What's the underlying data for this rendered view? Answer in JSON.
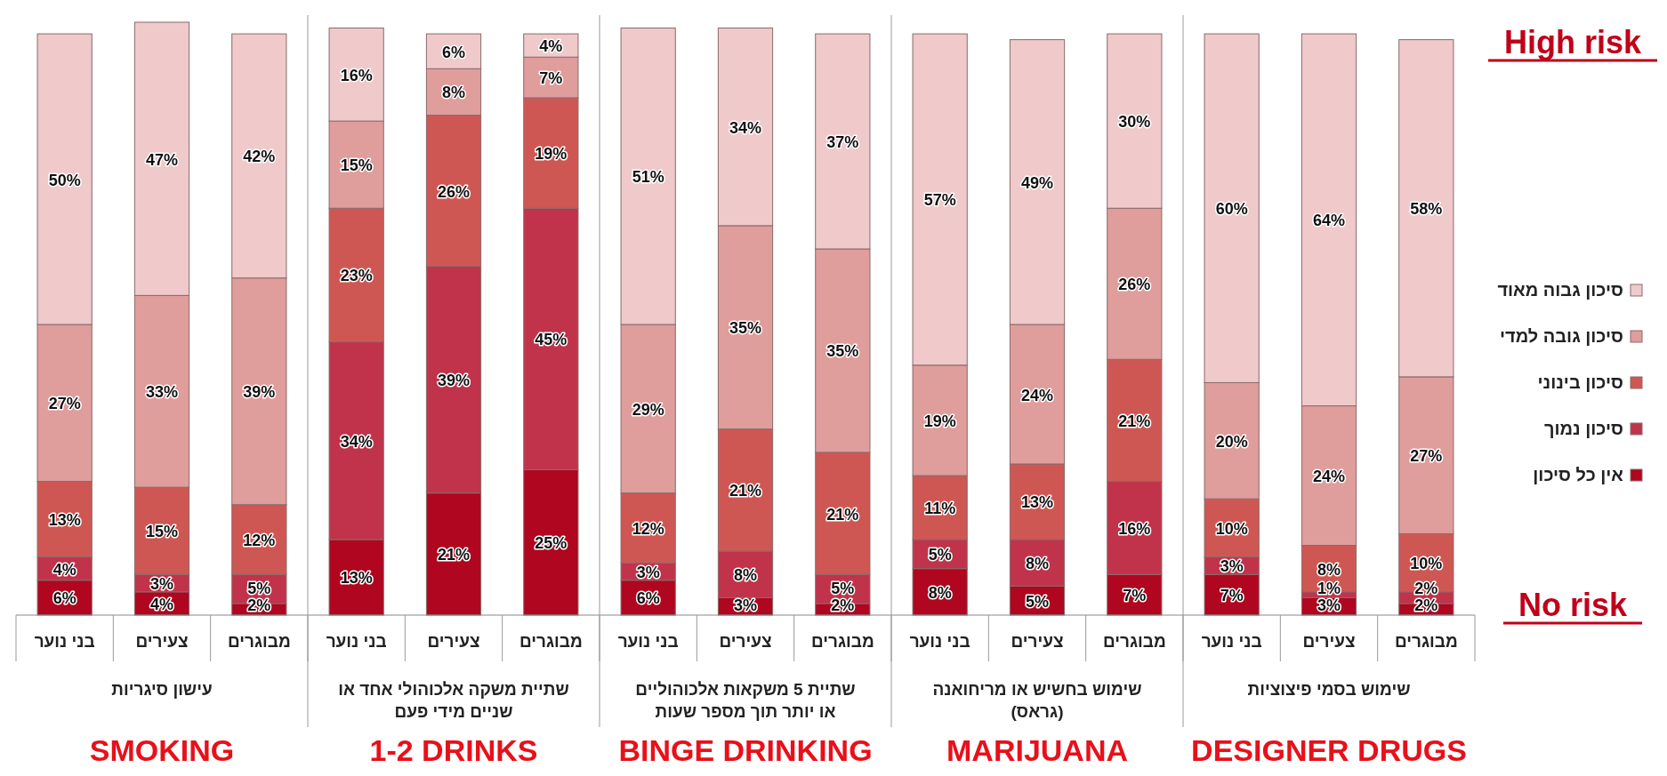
{
  "chart_data": {
    "type": "bar",
    "stacked": true,
    "legend": "right",
    "categories": [
      "בני נוער",
      "צעירים",
      "מבוגרים",
      "בני נוער",
      "צעירים",
      "מבוגרים",
      "בני נוער",
      "צעירים",
      "מבוגרים",
      "בני נוער",
      "צעירים",
      "מבוגרים",
      "בני נוער",
      "צעירים",
      "מבוגרים"
    ],
    "series": [
      {
        "name": "אין כל סיכון",
        "color": "#b0061f",
        "values": [
          6,
          4,
          2,
          13,
          21,
          25,
          6,
          3,
          2,
          8,
          5,
          7,
          7,
          3,
          2
        ],
        "value_labels": [
          "6%",
          "4%",
          "2%",
          "13%",
          "21%",
          "25%",
          "6%",
          "3%",
          "2%",
          "8%",
          "5%",
          "7%",
          "7%",
          "3%",
          "2%"
        ]
      },
      {
        "name": "סיכון נמוך",
        "color": "#c0334b",
        "values": [
          4,
          3,
          5,
          34,
          39,
          45,
          3,
          8,
          5,
          5,
          8,
          16,
          3,
          1,
          2
        ],
        "value_labels": [
          "4%",
          "3%",
          "5%",
          "34%",
          "39%",
          "45%",
          "3%",
          "8%",
          "5%",
          "5%",
          "8%",
          "16%",
          "3%",
          "1%",
          "2%"
        ]
      },
      {
        "name": "סיכון בינוני",
        "color": "#cf5753",
        "values": [
          13,
          15,
          12,
          23,
          26,
          19,
          12,
          21,
          21,
          11,
          13,
          21,
          10,
          8,
          10
        ],
        "value_labels": [
          "13%",
          "15%",
          "12%",
          "23%",
          "26%",
          "19%",
          "12%",
          "21%",
          "21%",
          "11%",
          "13%",
          "21%",
          "10%",
          "8%",
          "10%"
        ]
      },
      {
        "name": "סיכון גובה למדי",
        "color": "#df9d9b",
        "values": [
          27,
          33,
          39,
          15,
          8,
          7,
          29,
          35,
          35,
          19,
          24,
          26,
          20,
          24,
          27
        ],
        "value_labels": [
          "27%",
          "33%",
          "39%",
          "15%",
          "8%",
          "7%",
          "29%",
          "35%",
          "35%",
          "19%",
          "24%",
          "26%",
          "20%",
          "24%",
          "27%"
        ]
      },
      {
        "name": "סיכון גבוה מאוד",
        "color": "#f0c9ca",
        "values": [
          50,
          47,
          42,
          16,
          6,
          4,
          51,
          34,
          37,
          57,
          49,
          30,
          60,
          64,
          58
        ],
        "value_labels": [
          "50%",
          "47%",
          "42%",
          "16%",
          "6%",
          "4%",
          "51%",
          "34%",
          "37%",
          "57%",
          "49%",
          "30%",
          "60%",
          "64%",
          "58%"
        ]
      }
    ],
    "annotations": [
      "עישון סיגריות",
      "שתיית משקה אלכוהולי אחד או שניים מידי פעם",
      "שתיית 5 משקאות אלכוהוליים או יותר תוך מספר שעות",
      "שימוש בחשיש או מריחואנה (גראס)",
      "שימוש בסמי פיצוציות",
      "SMOKING",
      "1-2 DRINKS",
      "BINGE DRINKING",
      "MARIJUANA",
      "DESIGNER DRUGS",
      "High risk",
      "No risk"
    ]
  }
}
